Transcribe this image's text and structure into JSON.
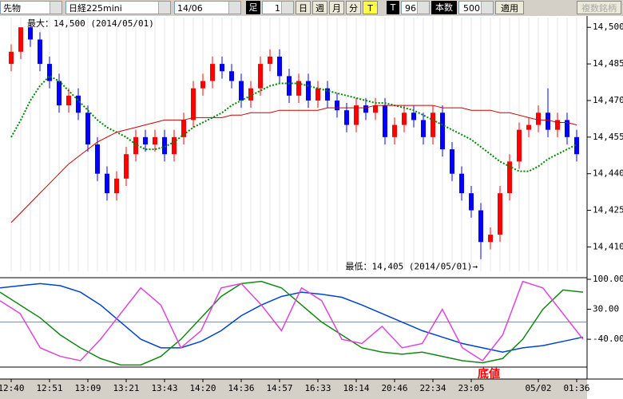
{
  "toolbar": {
    "market": "先物",
    "symbol": "日経225mini",
    "contract": "14/06",
    "foot_label": "足",
    "interval": "1",
    "buttons": [
      "日",
      "週",
      "月",
      "分",
      "T"
    ],
    "t_label": "T",
    "t_value": "96",
    "count_label": "本数",
    "count_value": "500",
    "apply": "適用",
    "multi": "複数銘柄"
  },
  "chart_data": [
    {
      "type": "candlestick",
      "categories": [
        "12:40",
        null,
        null,
        null,
        "12:51",
        null,
        null,
        null,
        "13:09",
        null,
        null,
        null,
        "13:21",
        null,
        null,
        null,
        "13:43",
        null,
        null,
        null,
        "14:20",
        null,
        null,
        null,
        "14:36",
        null,
        null,
        null,
        "14:57",
        null,
        null,
        null,
        "16:33",
        null,
        null,
        null,
        "18:14",
        null,
        null,
        null,
        "20:46",
        null,
        null,
        null,
        "22:34",
        null,
        null,
        null,
        "23:05",
        null,
        null,
        null,
        null,
        null,
        null,
        "05/02",
        null,
        null,
        null,
        "01:36"
      ],
      "open": [
        14485,
        14490,
        14500,
        14495,
        14485,
        14478,
        14468,
        14472,
        14465,
        14452,
        14440,
        14432,
        14438,
        14448,
        14455,
        14452,
        14455,
        14448,
        14455,
        14462,
        14475,
        14478,
        14485,
        14482,
        14478,
        14470,
        14475,
        14485,
        14488,
        14480,
        14472,
        14478,
        14470,
        14475,
        14470,
        14466,
        14460,
        14468,
        14465,
        14468,
        14455,
        14460,
        14465,
        14462,
        14455,
        14465,
        14450,
        14440,
        14432,
        14425,
        14412,
        14415,
        14432,
        14445,
        14458,
        14460,
        14465,
        14458,
        14462,
        14455
      ],
      "high": [
        14493,
        14500,
        14500,
        14498,
        14488,
        14481,
        14475,
        14475,
        14468,
        14455,
        14443,
        14441,
        14451,
        14458,
        14458,
        14458,
        14458,
        14458,
        14465,
        14478,
        14481,
        14488,
        14488,
        14485,
        14481,
        14478,
        14488,
        14491,
        14491,
        14483,
        14481,
        14481,
        14478,
        14478,
        14473,
        14469,
        14471,
        14471,
        14471,
        14471,
        14463,
        14468,
        14468,
        14465,
        14468,
        14468,
        14453,
        14443,
        14435,
        14428,
        14418,
        14435,
        14448,
        14461,
        14463,
        14468,
        14475,
        14465,
        14465,
        14458
      ],
      "low": [
        14482,
        14487,
        14492,
        14482,
        14475,
        14465,
        14465,
        14462,
        14449,
        14437,
        14429,
        14429,
        14435,
        14445,
        14449,
        14449,
        14445,
        14445,
        14452,
        14459,
        14472,
        14475,
        14479,
        14475,
        14467,
        14467,
        14472,
        14482,
        14477,
        14469,
        14469,
        14467,
        14467,
        14467,
        14463,
        14457,
        14457,
        14462,
        14462,
        14452,
        14452,
        14457,
        14459,
        14452,
        14452,
        14447,
        14437,
        14429,
        14422,
        14405,
        14409,
        14412,
        14429,
        14442,
        14455,
        14457,
        14455,
        14455,
        14452,
        14445
      ],
      "close": [
        14490,
        14500,
        14495,
        14485,
        14478,
        14468,
        14472,
        14465,
        14452,
        14440,
        14432,
        14438,
        14448,
        14455,
        14452,
        14455,
        14448,
        14455,
        14462,
        14475,
        14478,
        14485,
        14482,
        14478,
        14470,
        14475,
        14485,
        14488,
        14480,
        14472,
        14478,
        14470,
        14475,
        14470,
        14466,
        14460,
        14468,
        14465,
        14468,
        14455,
        14460,
        14465,
        14462,
        14455,
        14465,
        14450,
        14440,
        14432,
        14425,
        14412,
        14415,
        14432,
        14445,
        14458,
        14460,
        14465,
        14458,
        14462,
        14455,
        14448
      ],
      "up_color": "#ff0000",
      "down_color": "#0000ff",
      "series": [
        {
          "color": "#008800",
          "values": [
            14455,
            14462,
            14470,
            14476,
            14480,
            14478,
            14474,
            14470,
            14466,
            14462,
            14459,
            14457,
            14455,
            14452,
            14450,
            14450,
            14451,
            14453,
            14456,
            14459,
            14461,
            14463,
            14465,
            14468,
            14470,
            14472,
            14474,
            14476,
            14477,
            14477,
            14477,
            14476,
            14475,
            14474,
            14473,
            14472,
            14471,
            14470,
            14469,
            14469,
            14468,
            14467,
            14466,
            14464,
            14462,
            14460,
            14458,
            14456,
            14454,
            14451,
            14448,
            14445,
            14443,
            14441,
            14441,
            14443,
            14446,
            14448,
            14450,
            14452
          ]
        },
        {
          "color": "#cc0000",
          "values": [
            14420,
            14424,
            14428,
            14432,
            14436,
            14440,
            14444,
            14447,
            14450,
            14453,
            14455,
            14457,
            14458,
            14459,
            14460,
            14461,
            14462,
            14462,
            14462,
            14463,
            14463,
            14463,
            14463,
            14464,
            14464,
            14465,
            14465,
            14465,
            14466,
            14466,
            14466,
            14466,
            14466,
            14467,
            14467,
            14467,
            14467,
            14467,
            14468,
            14468,
            14468,
            14468,
            14468,
            14468,
            14468,
            14467,
            14467,
            14467,
            14466,
            14466,
            14466,
            14465,
            14465,
            14464,
            14463,
            14462,
            14462,
            14461,
            14461,
            14460
          ]
        }
      ],
      "ylim": [
        14400,
        14504
      ],
      "yticks": [
        {
          "value": 14500,
          "label": "14,500"
        },
        {
          "value": 14485,
          "label": "14,485"
        },
        {
          "value": 14470,
          "label": "14,470"
        },
        {
          "value": 14455,
          "label": "14,455"
        },
        {
          "value": 14440,
          "label": "14,440"
        },
        {
          "value": 14425,
          "label": "14,425"
        },
        {
          "value": 14410,
          "label": "14,410"
        }
      ],
      "max_label": "最大：14,500 (2014/05/01)",
      "min_label": "最低：14,405 (2014/05/01)→"
    },
    {
      "type": "line",
      "ylim": [
        -105,
        100
      ],
      "yticks": [
        {
          "value": 100,
          "label": "100.00"
        },
        {
          "value": 30,
          "label": "30.00"
        },
        {
          "value": -40,
          "label": "-40.00"
        }
      ],
      "ref_line": 0,
      "ref_color": "#3399ff",
      "series": [
        {
          "color": "#0044cc",
          "values": [
            80,
            85,
            90,
            85,
            70,
            40,
            0,
            -40,
            -60,
            -60,
            -45,
            -20,
            15,
            40,
            60,
            70,
            65,
            58,
            40,
            20,
            0,
            -20,
            -35,
            -50,
            -60,
            -70,
            -60,
            -55,
            -45,
            -35
          ]
        },
        {
          "color": "#118811",
          "values": [
            70,
            40,
            10,
            -30,
            -60,
            -85,
            -100,
            -100,
            -80,
            -40,
            10,
            60,
            90,
            95,
            80,
            40,
            0,
            -30,
            -60,
            -70,
            -75,
            -70,
            -80,
            -90,
            -95,
            -85,
            -40,
            30,
            75,
            70
          ]
        },
        {
          "color": "#dd44dd",
          "values": [
            50,
            20,
            -60,
            -80,
            -90,
            -40,
            20,
            80,
            40,
            -60,
            -20,
            80,
            90,
            40,
            -20,
            80,
            50,
            -40,
            -50,
            -10,
            -60,
            -50,
            30,
            -60,
            -90,
            -30,
            95,
            80,
            20,
            -40
          ]
        }
      ],
      "annotation": "底値"
    }
  ]
}
